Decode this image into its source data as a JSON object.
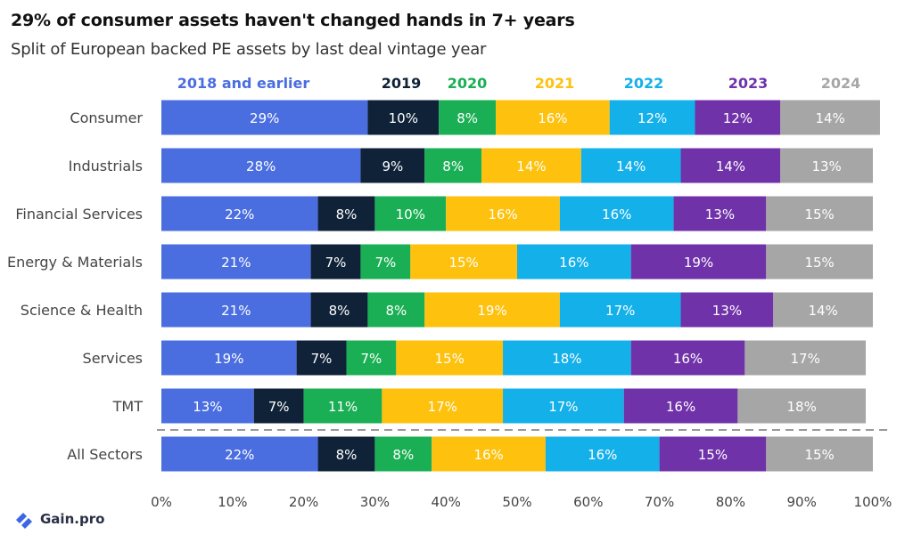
{
  "title": "29% of consumer assets haven't changed hands in 7+ years",
  "subtitle": "Split of European backed PE assets by last deal vintage year",
  "logo": {
    "text": "Gain.pro",
    "icon": "gain-pro-logo-icon"
  },
  "chart_data": {
    "type": "bar",
    "orientation": "horizontal",
    "stacked": true,
    "categories": [
      "Consumer",
      "Industrials",
      "Financial Services",
      "Energy & Materials",
      "Science & Health",
      "Services",
      "TMT",
      "All Sectors"
    ],
    "series": [
      {
        "name": "2018 and earlier",
        "color": "#4a6ee0",
        "label_color": "#ffffff",
        "values": [
          29,
          28,
          22,
          21,
          21,
          19,
          13,
          22
        ]
      },
      {
        "name": "2019",
        "color": "#0f2238",
        "label_color": "#ffffff",
        "values": [
          10,
          9,
          8,
          7,
          8,
          7,
          7,
          8
        ]
      },
      {
        "name": "2020",
        "color": "#1aaf54",
        "label_color": "#ffffff",
        "values": [
          8,
          8,
          10,
          7,
          8,
          7,
          11,
          8
        ]
      },
      {
        "name": "2021",
        "color": "#fdc10e",
        "label_color": "#ffffff",
        "values": [
          16,
          14,
          16,
          15,
          19,
          15,
          17,
          16
        ]
      },
      {
        "name": "2022",
        "color": "#14b0ea",
        "label_color": "#ffffff",
        "values": [
          12,
          14,
          16,
          16,
          17,
          18,
          17,
          16
        ]
      },
      {
        "name": "2023",
        "color": "#6f32a8",
        "label_color": "#ffffff",
        "values": [
          12,
          14,
          13,
          19,
          13,
          16,
          16,
          15
        ]
      },
      {
        "name": "2024",
        "color": "#a6a6a6",
        "label_color": "#ffffff",
        "values": [
          14,
          13,
          15,
          15,
          14,
          17,
          18,
          15
        ]
      }
    ],
    "data_labels": [
      [
        "29%",
        "10%",
        "8%",
        "16%",
        "12%",
        "12%",
        "14%"
      ],
      [
        "28%",
        "9%",
        "8%",
        "14%",
        "14%",
        "14%",
        "13%"
      ],
      [
        "22%",
        "8%",
        "10%",
        "16%",
        "16%",
        "13%",
        "15%"
      ],
      [
        "21%",
        "7%",
        "7%",
        "15%",
        "16%",
        "19%",
        "15%"
      ],
      [
        "21%",
        "8%",
        "8%",
        "19%",
        "17%",
        "13%",
        "14%"
      ],
      [
        "19%",
        "7%",
        "7%",
        "15%",
        "18%",
        "16%",
        "17%"
      ],
      [
        "13%",
        "7%",
        "11%",
        "17%",
        "17%",
        "16%",
        "18%"
      ],
      [
        "22%",
        "8%",
        "8%",
        "16%",
        "16%",
        "15%",
        "15%"
      ]
    ],
    "xlim": [
      0,
      100
    ],
    "x_ticks": [
      "0%",
      "10%",
      "20%",
      "30%",
      "40%",
      "50%",
      "60%",
      "70%",
      "80%",
      "90%",
      "100%"
    ],
    "separator_before": "All Sectors",
    "legend_position": "top",
    "grid": false
  }
}
